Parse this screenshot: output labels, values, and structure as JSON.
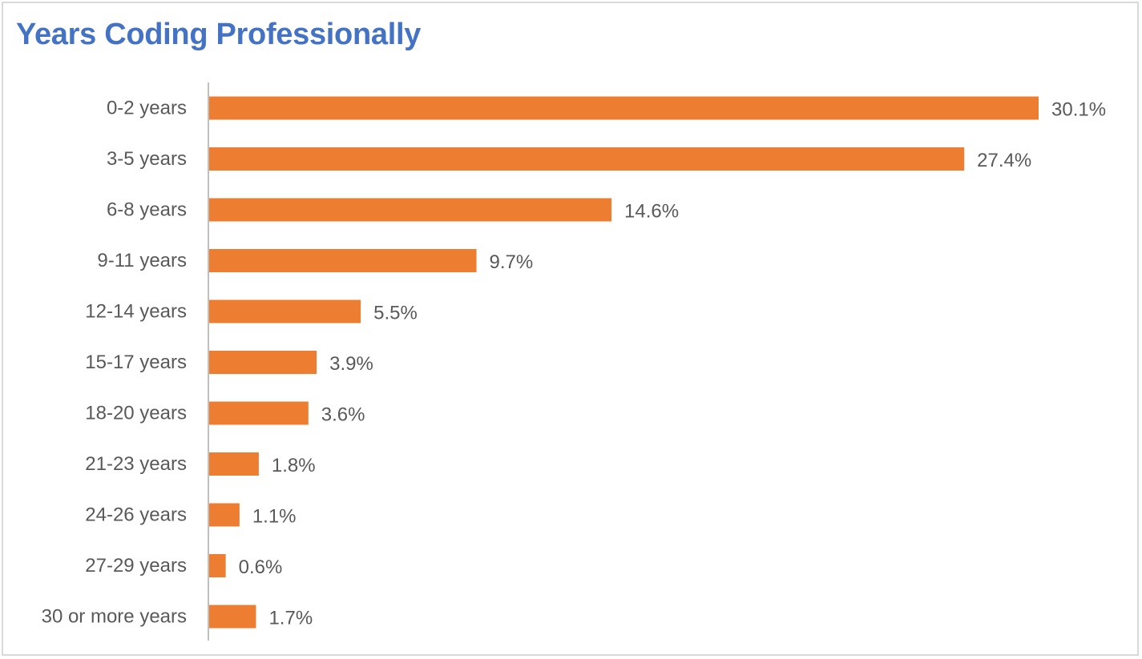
{
  "chart_data": {
    "type": "bar",
    "orientation": "horizontal",
    "title": "Years Coding Professionally",
    "xlabel": "",
    "ylabel": "",
    "categories": [
      "0-2 years",
      "3-5 years",
      "6-8 years",
      "9-11 years",
      "12-14 years",
      "15-17 years",
      "18-20 years",
      "21-23 years",
      "24-26 years",
      "27-29 years",
      "30 or more years"
    ],
    "values": [
      30.1,
      27.4,
      14.6,
      9.7,
      5.5,
      3.9,
      3.6,
      1.8,
      1.1,
      0.6,
      1.7
    ],
    "data_labels": [
      "30.1%",
      "27.4%",
      "14.6%",
      "9.7%",
      "5.5%",
      "3.9%",
      "3.6%",
      "1.8%",
      "1.1%",
      "0.6%",
      "1.7%"
    ],
    "xlim": [
      0,
      30.1
    ],
    "grid": false,
    "legend": "none",
    "bar_color": "#ed7d31",
    "title_color": "#4472c4"
  }
}
